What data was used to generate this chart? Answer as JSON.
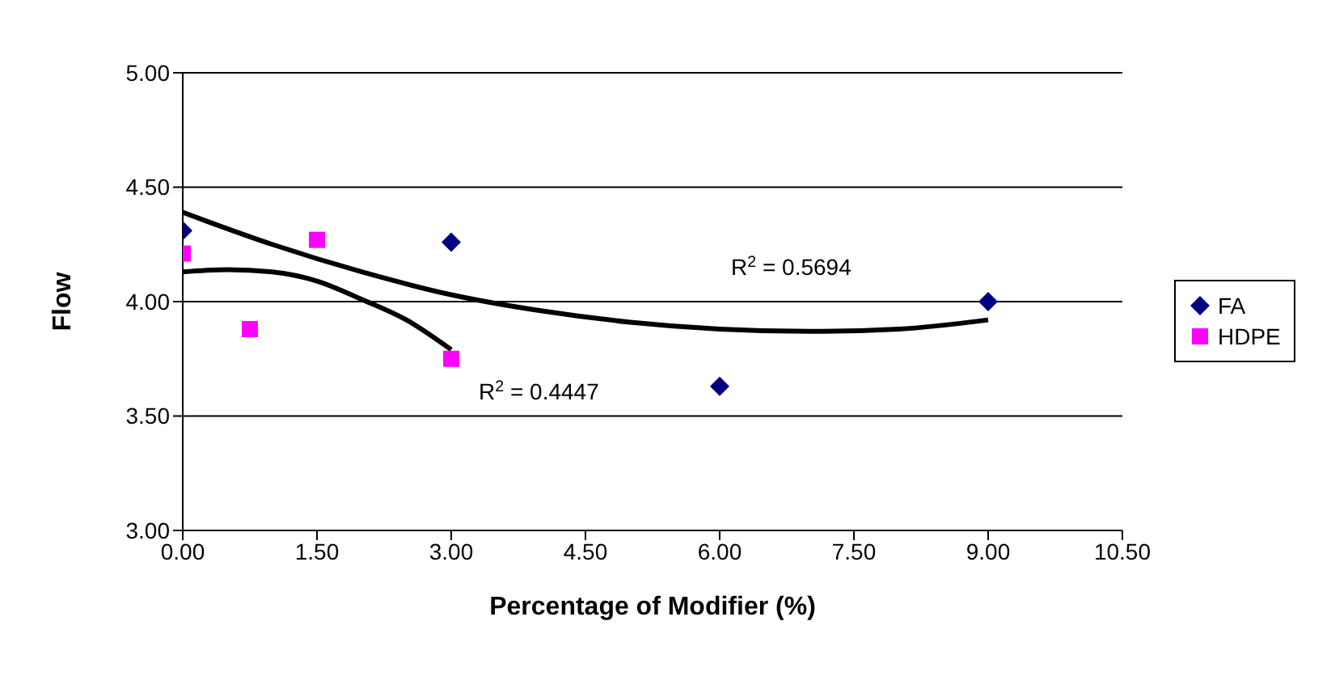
{
  "chart_data": {
    "type": "scatter",
    "xlabel": "Percentage of Modifier (%)",
    "ylabel": "Flow",
    "xlim": [
      0,
      10.5
    ],
    "xticks": [
      {
        "value": 0,
        "label": "0.00"
      },
      {
        "value": 1.5,
        "label": "1.50"
      },
      {
        "value": 3,
        "label": "3.00"
      },
      {
        "value": 4.5,
        "label": "4.50"
      },
      {
        "value": 6,
        "label": "6.00"
      },
      {
        "value": 7.5,
        "label": "7.50"
      },
      {
        "value": 9,
        "label": "9.00"
      },
      {
        "value": 10.5,
        "label": "10.50"
      }
    ],
    "ylim": [
      3,
      5
    ],
    "yticks": [
      {
        "value": 3,
        "label": "3.00"
      },
      {
        "value": 3.5,
        "label": "3.50"
      },
      {
        "value": 4,
        "label": "4.00"
      },
      {
        "value": 4.5,
        "label": "4.50"
      },
      {
        "value": 5,
        "label": "5.00"
      }
    ],
    "grid": "y",
    "legend": "right",
    "series": [
      {
        "name": "FA",
        "color": "#000080",
        "marker": "diamond",
        "x": [
          0,
          3,
          6,
          9
        ],
        "values": [
          4.31,
          4.26,
          3.63,
          4.0
        ]
      },
      {
        "name": "HDPE",
        "color": "#ff00ff",
        "marker": "square",
        "x": [
          0,
          0.75,
          1.5,
          3
        ],
        "values": [
          4.21,
          3.88,
          4.27,
          3.75
        ]
      },
      {
        "type": "line",
        "color": "#000000",
        "marker": "none",
        "x": [
          0,
          1,
          2,
          3,
          4,
          5,
          6,
          7,
          8,
          9
        ],
        "values": [
          4.39,
          4.25,
          4.13,
          4.03,
          3.96,
          3.91,
          3.88,
          3.87,
          3.88,
          3.92
        ]
      },
      {
        "type": "line",
        "color": "#000000",
        "marker": "none",
        "x": [
          0,
          0.5,
          1,
          1.5,
          2,
          2.5,
          3
        ],
        "values": [
          4.13,
          4.14,
          4.13,
          4.09,
          4.01,
          3.92,
          3.79
        ]
      }
    ],
    "annotations": [
      "R$^{2}$ = 0.5694",
      "R$^{2}$ = 0.4447"
    ]
  }
}
